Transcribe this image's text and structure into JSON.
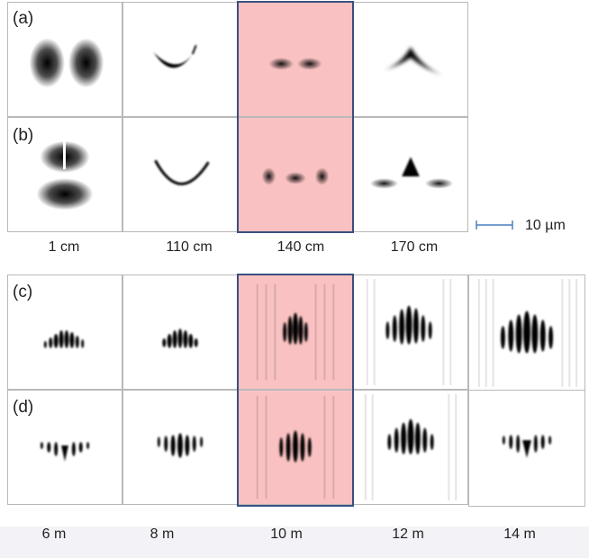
{
  "row_labels": {
    "a": "(a)",
    "b": "(b)",
    "c": "(c)",
    "d": "(d)"
  },
  "top_columns": [
    "1 cm",
    "110 cm",
    "140 cm",
    "170 cm"
  ],
  "bottom_columns": [
    "6 m",
    "8 m",
    "10 m",
    "12 m",
    "14 m"
  ],
  "scale_bar": "10 µm",
  "colors": {
    "highlight_fill": "#f9c1c1",
    "highlight_border": "#3a4f80",
    "panel_border": "#b9b9b9"
  },
  "highlighted": {
    "top_column": "140 cm",
    "bottom_column": "10 m"
  }
}
